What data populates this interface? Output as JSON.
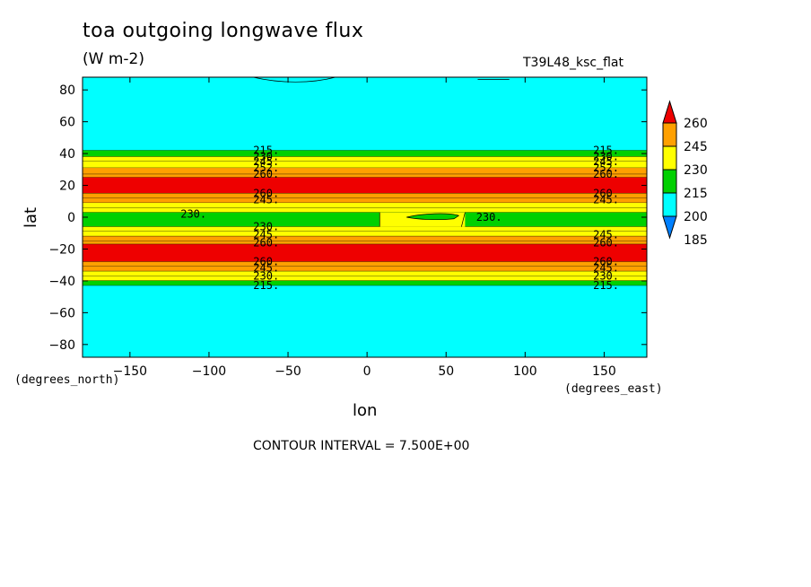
{
  "header": {
    "title": "toa outgoing longwave flux",
    "units": "(W m-2)",
    "run_name": "T39L48_ksc_flat"
  },
  "footer": {
    "contour_interval": "CONTOUR INTERVAL = 7.500E+00"
  },
  "axes_units": {
    "lon": "(degrees_east)",
    "lat": "(degrees_north)"
  },
  "chart_data": {
    "type": "heatmap",
    "title": "toa outgoing longwave flux",
    "subtitle": "(W m-2)",
    "xlabel": "lon",
    "ylabel": "lat",
    "xlim": [
      -180,
      177
    ],
    "ylim": [
      -88,
      88
    ],
    "x_ticks": [
      -150,
      -100,
      -50,
      0,
      50,
      100,
      150
    ],
    "x_tick_labels": [
      "−150",
      "−100",
      "−50",
      "0",
      "50",
      "100",
      "150"
    ],
    "y_ticks": [
      80,
      60,
      40,
      20,
      0,
      -20,
      -40,
      -60,
      -80
    ],
    "y_tick_labels": [
      "80",
      "60",
      "40",
      "20",
      "0",
      "−20",
      "−40",
      "−60",
      "−80"
    ],
    "colorbar": {
      "levels": [
        185,
        200,
        215,
        230,
        245,
        260
      ],
      "labels": [
        "185",
        "200",
        "215",
        "230",
        "245",
        "260"
      ],
      "colors": [
        "#0080ff",
        "#00ffff",
        "#00d000",
        "#ffff00",
        "#ffa000",
        "#ee0000"
      ]
    },
    "contour_interval": 7.5,
    "zonal_bands": [
      {
        "lat_from": 88,
        "lat_to": 42,
        "band": "200-215",
        "color": "#00ffff"
      },
      {
        "lat_from": 42,
        "lat_to": 38,
        "band": "215-230",
        "color": "#00d000"
      },
      {
        "lat_from": 38,
        "lat_to": 35,
        "band": "230-237.5",
        "color": "#ffff00"
      },
      {
        "lat_from": 35,
        "lat_to": 31,
        "band": "237.5-245",
        "color": "#ffff00"
      },
      {
        "lat_from": 31,
        "lat_to": 27,
        "band": "245-252.5",
        "color": "#ffa000"
      },
      {
        "lat_from": 27,
        "lat_to": 25,
        "band": "252.5-260",
        "color": "#ffa000"
      },
      {
        "lat_from": 25,
        "lat_to": 15,
        "band": ">260",
        "color": "#ee0000"
      },
      {
        "lat_from": 15,
        "lat_to": 12,
        "band": "252.5-260",
        "color": "#ffa000"
      },
      {
        "lat_from": 12,
        "lat_to": 9,
        "band": "245-252.5",
        "color": "#ffa000"
      },
      {
        "lat_from": 9,
        "lat_to": 6,
        "band": "237.5-245",
        "color": "#ffff00"
      },
      {
        "lat_from": 6,
        "lat_to": 3,
        "band": "230-237.5",
        "color": "#ffff00"
      },
      {
        "lat_from": 3,
        "lat_to": -6,
        "band": "215-230",
        "color": "#00d000"
      },
      {
        "lat_from": -6,
        "lat_to": -9,
        "band": "230-237.5",
        "color": "#ffff00"
      },
      {
        "lat_from": -9,
        "lat_to": -12,
        "band": "237.5-245",
        "color": "#ffff00"
      },
      {
        "lat_from": -12,
        "lat_to": -15,
        "band": "245-252.5",
        "color": "#ffa000"
      },
      {
        "lat_from": -15,
        "lat_to": -17,
        "band": "252.5-260",
        "color": "#ffa000"
      },
      {
        "lat_from": -17,
        "lat_to": -28,
        "band": ">260",
        "color": "#ee0000"
      },
      {
        "lat_from": -28,
        "lat_to": -31,
        "band": "252.5-260",
        "color": "#ffa000"
      },
      {
        "lat_from": -31,
        "lat_to": -34,
        "band": "245-252.5",
        "color": "#ffa000"
      },
      {
        "lat_from": -34,
        "lat_to": -37,
        "band": "237.5-245",
        "color": "#ffff00"
      },
      {
        "lat_from": -37,
        "lat_to": -40,
        "band": "230-237.5",
        "color": "#ffff00"
      },
      {
        "lat_from": -40,
        "lat_to": -43,
        "band": "215-230",
        "color": "#00d000"
      },
      {
        "lat_from": -43,
        "lat_to": -88,
        "band": "200-215",
        "color": "#00ffff"
      }
    ],
    "equatorial_region": {
      "lon_from": 8,
      "lon_to": 62,
      "lat_from": 3,
      "lat_to": -6,
      "color": "#ffff00",
      "value": "230"
    },
    "contour_labels": [
      {
        "text": "215.",
        "lon": -72,
        "lat": 42
      },
      {
        "text": "230.",
        "lon": -72,
        "lat": 38
      },
      {
        "text": "245.",
        "lon": -72,
        "lat": 35
      },
      {
        "text": "252.",
        "lon": -72,
        "lat": 31
      },
      {
        "text": "260.",
        "lon": -72,
        "lat": 27
      },
      {
        "text": "260.",
        "lon": -72,
        "lat": 15
      },
      {
        "text": "245.",
        "lon": -72,
        "lat": 11
      },
      {
        "text": "230.",
        "lon": -118,
        "lat": 2
      },
      {
        "text": "230.",
        "lon": -72,
        "lat": -6
      },
      {
        "text": "245.",
        "lon": -72,
        "lat": -11
      },
      {
        "text": "260.",
        "lon": -72,
        "lat": -16
      },
      {
        "text": "260.",
        "lon": -72,
        "lat": -28
      },
      {
        "text": "245.",
        "lon": -72,
        "lat": -32
      },
      {
        "text": "230.",
        "lon": -72,
        "lat": -37
      },
      {
        "text": "215.",
        "lon": -72,
        "lat": -43
      },
      {
        "text": "215.",
        "lon": 143,
        "lat": 42
      },
      {
        "text": "230.",
        "lon": 143,
        "lat": 38
      },
      {
        "text": "245.",
        "lon": 143,
        "lat": 35
      },
      {
        "text": "252.",
        "lon": 143,
        "lat": 31
      },
      {
        "text": "260.",
        "lon": 143,
        "lat": 27
      },
      {
        "text": "260.",
        "lon": 143,
        "lat": 15
      },
      {
        "text": "245.",
        "lon": 143,
        "lat": 11
      },
      {
        "text": "230.",
        "lon": 69,
        "lat": 0
      },
      {
        "text": "245.",
        "lon": 143,
        "lat": -11
      },
      {
        "text": "260.",
        "lon": 143,
        "lat": -16
      },
      {
        "text": "260.",
        "lon": 143,
        "lat": -28
      },
      {
        "text": "245.",
        "lon": 143,
        "lat": -32
      },
      {
        "text": "230.",
        "lon": 143,
        "lat": -37
      },
      {
        "text": "215.",
        "lon": 143,
        "lat": -43
      }
    ]
  }
}
